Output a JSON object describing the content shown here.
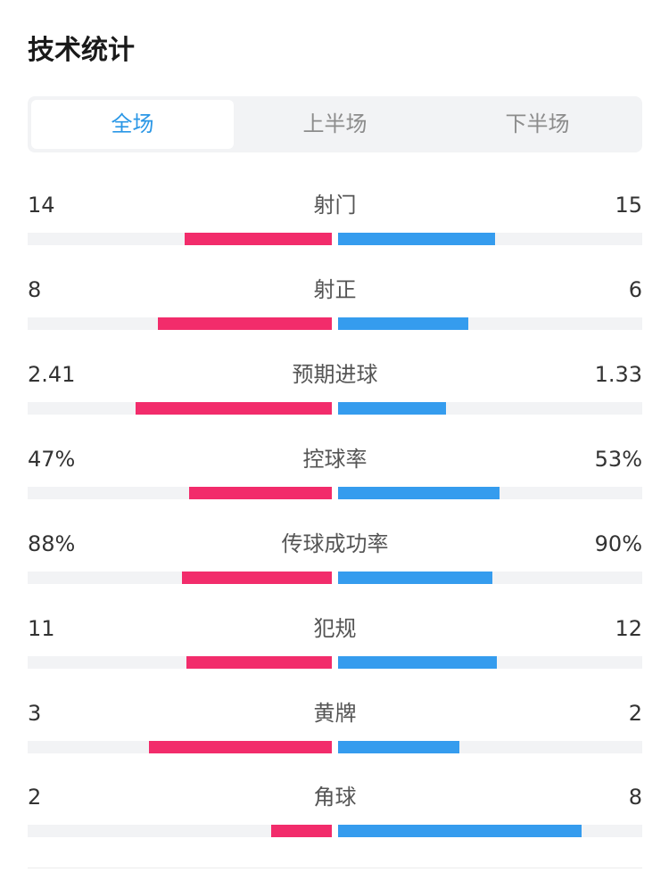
{
  "header": {
    "title": "技术统计"
  },
  "tabs": [
    {
      "label": "全场",
      "active": true
    },
    {
      "label": "上半场",
      "active": false
    },
    {
      "label": "下半场",
      "active": false
    }
  ],
  "colors": {
    "home": "#f22c6b",
    "away": "#359cee",
    "accent": "#2b97e6",
    "track": "#f2f3f5"
  },
  "stats": [
    {
      "label": "射门",
      "home": "14",
      "away": "15",
      "home_share": 0.483,
      "away_share": 0.517
    },
    {
      "label": "射正",
      "home": "8",
      "away": "6",
      "home_share": 0.571,
      "away_share": 0.429
    },
    {
      "label": "预期进球",
      "home": "2.41",
      "away": "1.33",
      "home_share": 0.644,
      "away_share": 0.356
    },
    {
      "label": "控球率",
      "home": "47%",
      "away": "53%",
      "home_share": 0.47,
      "away_share": 0.53
    },
    {
      "label": "传球成功率",
      "home": "88%",
      "away": "90%",
      "home_share": 0.494,
      "away_share": 0.506
    },
    {
      "label": "犯规",
      "home": "11",
      "away": "12",
      "home_share": 0.478,
      "away_share": 0.522
    },
    {
      "label": "黄牌",
      "home": "3",
      "away": "2",
      "home_share": 0.6,
      "away_share": 0.4
    },
    {
      "label": "角球",
      "home": "2",
      "away": "8",
      "home_share": 0.2,
      "away_share": 0.8
    }
  ]
}
